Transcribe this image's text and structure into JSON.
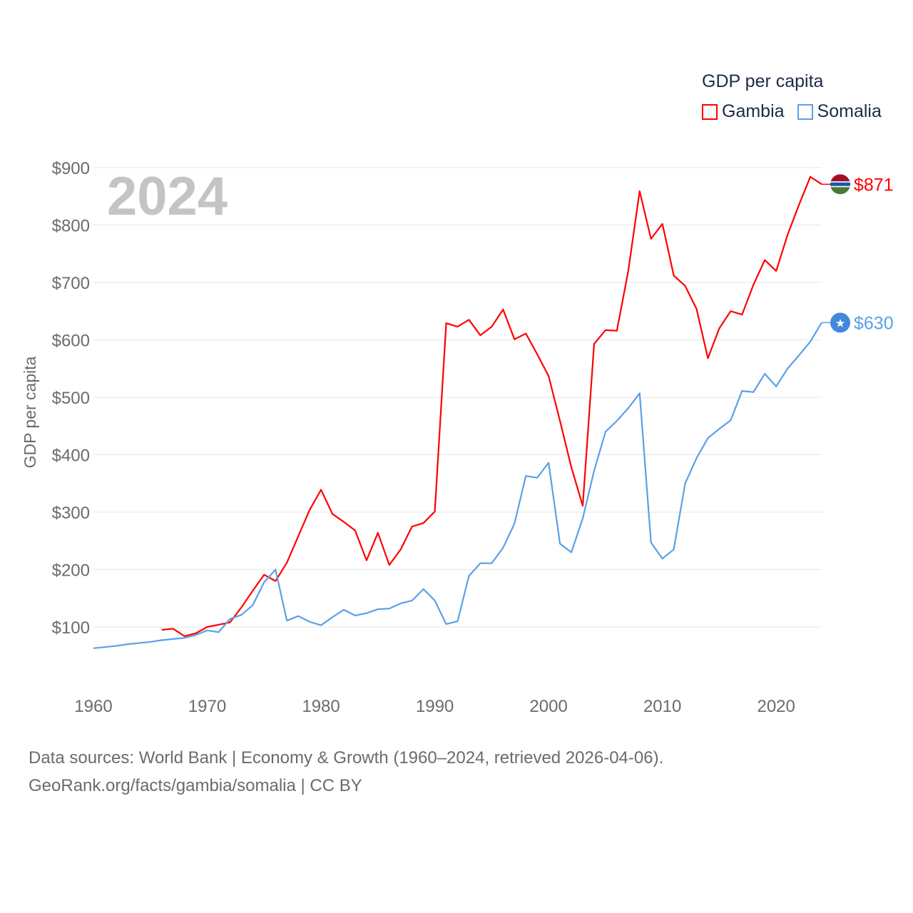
{
  "legend": {
    "title": "GDP per capita",
    "items": [
      {
        "name": "Gambia",
        "color": "#ff0000"
      },
      {
        "name": "Somalia",
        "color": "#5aa0e8"
      }
    ]
  },
  "footer": {
    "line1": "Data sources: World Bank | Economy & Growth (1960–2024, retrieved 2026-04-06).",
    "line2": "GeoRank.org/facts/gambia/somalia | CC BY"
  },
  "chart_data": {
    "type": "line",
    "title": "GDP per capita",
    "year_label": "2024",
    "xlabel": "",
    "ylabel": "GDP per capita",
    "xlim": [
      1960,
      2024
    ],
    "ylim": [
      0,
      900
    ],
    "x_ticks": [
      "1960",
      "1970",
      "1980",
      "1990",
      "2000",
      "2010",
      "2020"
    ],
    "y_ticks": [
      {
        "value": 100,
        "label": "$100"
      },
      {
        "value": 200,
        "label": "$200"
      },
      {
        "value": 300,
        "label": "$300"
      },
      {
        "value": 400,
        "label": "$400"
      },
      {
        "value": 500,
        "label": "$500"
      },
      {
        "value": 600,
        "label": "$600"
      },
      {
        "value": 700,
        "label": "$700"
      },
      {
        "value": 800,
        "label": "$800"
      },
      {
        "value": 900,
        "label": "$900"
      }
    ],
    "grid": true,
    "legend_position": "top-right",
    "series": [
      {
        "name": "Gambia",
        "color": "#ff0000",
        "end_label": "$871",
        "start_year": 1966,
        "values": [
          95,
          97,
          84,
          89,
          100,
          104,
          108,
          134,
          163,
          191,
          180,
          212,
          258,
          304,
          339,
          297,
          283,
          268,
          216,
          264,
          208,
          235,
          275,
          281,
          301,
          629,
          623,
          635,
          608,
          623,
          653,
          601,
          611,
          575,
          537,
          459,
          378,
          311,
          593,
          617,
          616,
          720,
          859,
          776,
          802,
          712,
          694,
          654,
          568,
          620,
          650,
          644,
          696,
          739,
          720,
          783,
          835,
          884,
          871
        ]
      },
      {
        "name": "Somalia",
        "color": "#5aa0e8",
        "end_label": "$630",
        "start_year": 1960,
        "values": [
          63,
          65,
          67,
          70,
          72,
          74,
          77,
          79,
          81,
          86,
          94,
          91,
          114,
          121,
          138,
          178,
          200,
          111,
          119,
          109,
          103,
          117,
          130,
          120,
          124,
          131,
          132,
          141,
          146,
          166,
          146,
          105,
          110,
          189,
          211,
          211,
          238,
          280,
          363,
          360,
          386,
          245,
          230,
          289,
          372,
          440,
          459,
          481,
          507,
          247,
          219,
          235,
          350,
          394,
          429,
          445,
          460,
          511,
          509,
          541,
          519,
          550,
          573,
          597,
          630
        ]
      }
    ]
  }
}
